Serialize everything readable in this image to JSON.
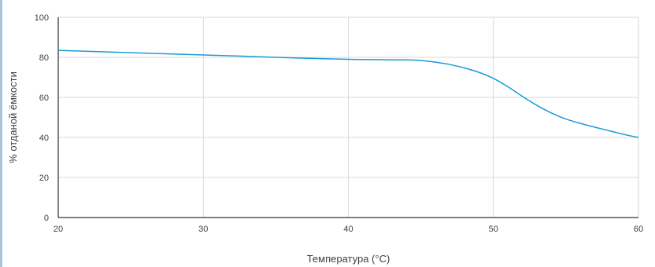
{
  "colors": {
    "line": "#1a9bd7",
    "grid": "#d9d9d9",
    "axis": "#000000",
    "left_stripe": "#a7c4dc"
  },
  "chart_data": {
    "type": "line",
    "title": "",
    "xlabel": "Температура (°C)",
    "ylabel": "% отданой ёмкости",
    "xlim": [
      20,
      60
    ],
    "ylim": [
      0,
      100
    ],
    "x_ticks": [
      20,
      30,
      40,
      50,
      60
    ],
    "y_ticks": [
      0,
      20,
      40,
      60,
      80,
      100
    ],
    "grid": true,
    "legend": "none",
    "series": [
      {
        "x": [
          20,
          25,
          30,
          35,
          40,
          44,
          45,
          46,
          47,
          48,
          49,
          50,
          51,
          52,
          53,
          54,
          55,
          56,
          57,
          58,
          59,
          60
        ],
        "y": [
          83.5,
          82.3,
          81.2,
          80.0,
          79.0,
          78.7,
          78.4,
          77.6,
          76.4,
          74.7,
          72.5,
          69.5,
          65.3,
          60.5,
          56.0,
          52.2,
          49.2,
          47.0,
          45.1,
          43.3,
          41.5,
          40.0
        ]
      }
    ]
  }
}
